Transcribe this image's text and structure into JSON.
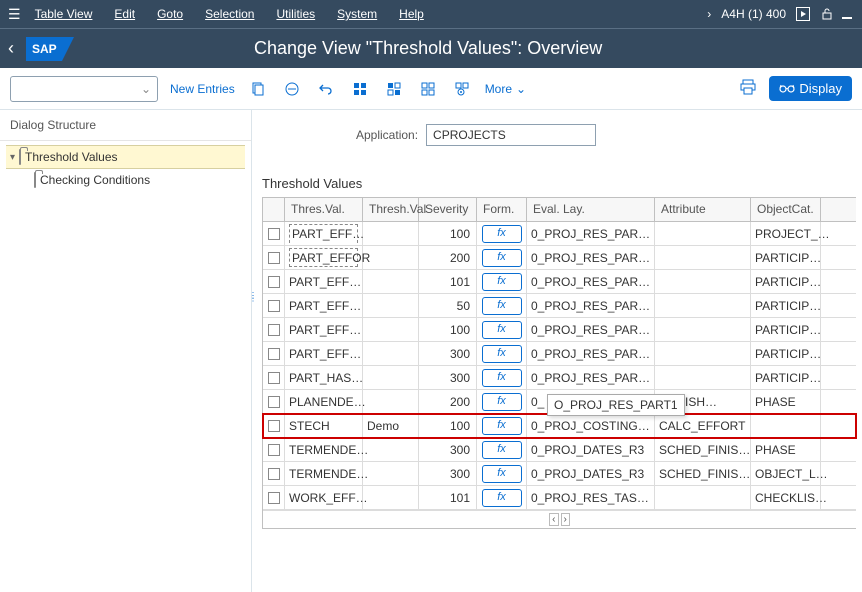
{
  "menu": {
    "items": [
      "Table View",
      "Edit",
      "Goto",
      "Selection",
      "Utilities",
      "System",
      "Help"
    ],
    "system_id": "A4H (1) 400"
  },
  "title": "Change View \"Threshold Values\": Overview",
  "toolbar": {
    "new_entries": "New Entries",
    "more": "More",
    "display": "Display"
  },
  "sidebar": {
    "header": "Dialog Structure",
    "root": "Threshold Values",
    "child": "Checking Conditions"
  },
  "application": {
    "label": "Application:",
    "value": "CPROJECTS"
  },
  "section_title": "Threshold Values",
  "columns": [
    "Thres.Val.",
    "Thresh.Val",
    "Severity",
    "Form.",
    "Eval. Lay.",
    "Attribute",
    "ObjectCat."
  ],
  "fx_label": "fx",
  "tooltip": "O_PROJ_RES_PART1",
  "rows": [
    {
      "tv": "PART_EFF…",
      "tvl": "",
      "sev": "100",
      "eval": "0_PROJ_RES_PAR…",
      "attr": "",
      "obj": "PROJECT_…",
      "dash": "top"
    },
    {
      "tv": "PART_EFFOR",
      "tvl": "",
      "sev": "200",
      "eval": "0_PROJ_RES_PAR…",
      "attr": "",
      "obj": "PARTICIP…",
      "dash": "full"
    },
    {
      "tv": "PART_EFF…",
      "tvl": "",
      "sev": "101",
      "eval": "0_PROJ_RES_PAR…",
      "attr": "",
      "obj": "PARTICIP…"
    },
    {
      "tv": "PART_EFF…",
      "tvl": "",
      "sev": "50",
      "eval": "0_PROJ_RES_PAR…",
      "attr": "",
      "obj": "PARTICIP…"
    },
    {
      "tv": "PART_EFF…",
      "tvl": "",
      "sev": "100",
      "eval": "0_PROJ_RES_PAR…",
      "attr": "",
      "obj": "PARTICIP…"
    },
    {
      "tv": "PART_EFF…",
      "tvl": "",
      "sev": "300",
      "eval": "0_PROJ_RES_PAR…",
      "attr": "",
      "obj": "PARTICIP…"
    },
    {
      "tv": "PART_HAS…",
      "tvl": "",
      "sev": "300",
      "eval": "0_PROJ_RES_PAR…",
      "attr": "",
      "obj": "PARTICIP…"
    },
    {
      "tv": "PLANENDE…",
      "tvl": "",
      "sev": "200",
      "eval": "0_",
      "attr": "_FINISH…",
      "obj": "PHASE",
      "tooltip": true
    },
    {
      "tv": "STECH",
      "tvl": "Demo",
      "sev": "100",
      "eval": "0_PROJ_COSTING…",
      "attr": "CALC_EFFORT",
      "obj": "",
      "highlight": true
    },
    {
      "tv": "TERMENDE…",
      "tvl": "",
      "sev": "300",
      "eval": "0_PROJ_DATES_R3",
      "attr": "SCHED_FINIS…",
      "obj": "PHASE"
    },
    {
      "tv": "TERMENDE…",
      "tvl": "",
      "sev": "300",
      "eval": "0_PROJ_DATES_R3",
      "attr": "SCHED_FINIS…",
      "obj": "OBJECT_L…"
    },
    {
      "tv": "WORK_EFF…",
      "tvl": "",
      "sev": "101",
      "eval": "0_PROJ_RES_TAS…",
      "attr": "",
      "obj": "CHECKLIS…"
    }
  ]
}
